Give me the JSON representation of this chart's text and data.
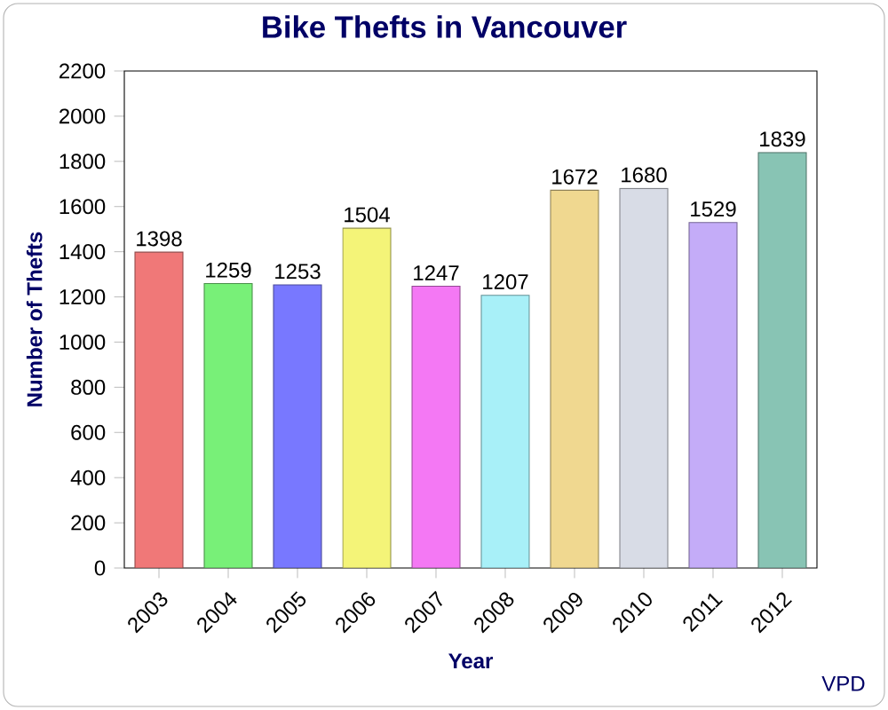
{
  "chart_data": {
    "type": "bar",
    "title": "Bike Thefts in Vancouver",
    "xlabel": "Year",
    "ylabel": "Number of Thefts",
    "categories": [
      "2003",
      "2004",
      "2005",
      "2006",
      "2007",
      "2008",
      "2009",
      "2010",
      "2011",
      "2012"
    ],
    "values": [
      1398,
      1259,
      1253,
      1504,
      1247,
      1207,
      1672,
      1680,
      1529,
      1839
    ],
    "colors": [
      "#f07878",
      "#78f078",
      "#7878ff",
      "#f4f478",
      "#f478f4",
      "#a8f0f8",
      "#f0d890",
      "#d8dce6",
      "#c4acf8",
      "#88c4b4"
    ],
    "ylim": [
      0,
      2200
    ],
    "yticks": [
      0,
      200,
      400,
      600,
      800,
      1000,
      1200,
      1400,
      1600,
      1800,
      2000,
      2200
    ],
    "data_labels": true,
    "annotations": [
      "VPD"
    ]
  }
}
